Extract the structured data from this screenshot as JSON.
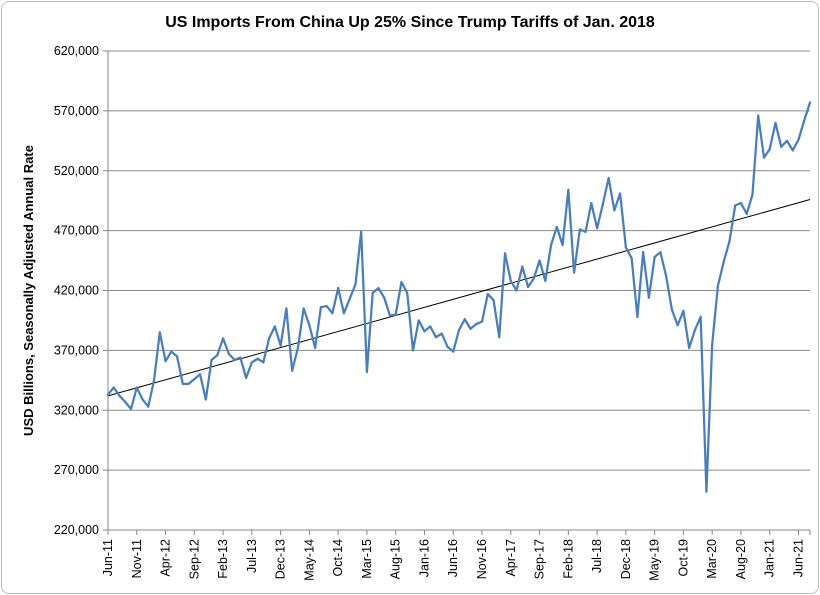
{
  "chart_data": {
    "type": "line",
    "title": "US Imports From China Up 25% Since Trump Tariffs of Jan. 2018",
    "xlabel": "",
    "ylabel": "USD Billions, Seasonally Adjusted Annual Rate",
    "ylim": [
      220000,
      620000
    ],
    "yticks": [
      220000,
      270000,
      320000,
      370000,
      420000,
      470000,
      520000,
      570000,
      620000
    ],
    "ytick_labels": [
      "220,000",
      "270,000",
      "320,000",
      "370,000",
      "420,000",
      "470,000",
      "520,000",
      "570,000",
      "620,000"
    ],
    "grid": true,
    "legend": "none",
    "x_tick_labels": [
      "Jun-11",
      "Nov-11",
      "Apr-12",
      "Sep-12",
      "Feb-13",
      "Jul-13",
      "Dec-13",
      "May-14",
      "Oct-14",
      "Mar-15",
      "Aug-15",
      "Jan-16",
      "Jun-16",
      "Nov-16",
      "Apr-17",
      "Sep-17",
      "Feb-18",
      "Jul-18",
      "Dec-18",
      "May-19",
      "Oct-19",
      "Mar-20",
      "Aug-20",
      "Jan-21",
      "Jun-21"
    ],
    "series": [
      {
        "color": "#4a7ebb",
        "start": "2011-06",
        "values": [
          333000,
          339000,
          332000,
          327000,
          321000,
          339000,
          329000,
          323000,
          345000,
          385000,
          361000,
          369000,
          365000,
          342000,
          342000,
          346000,
          350000,
          329000,
          362000,
          366000,
          380000,
          367000,
          362000,
          364000,
          347000,
          360000,
          363000,
          360000,
          380000,
          390000,
          374000,
          405000,
          353000,
          372000,
          405000,
          391000,
          372000,
          406000,
          407000,
          401000,
          422000,
          401000,
          413000,
          425000,
          469000,
          352000,
          418000,
          422000,
          414000,
          399000,
          400000,
          427000,
          418000,
          370000,
          395000,
          386000,
          390000,
          381000,
          384000,
          373000,
          369000,
          387000,
          396000,
          388000,
          392000,
          394000,
          417000,
          412000,
          381000,
          451000,
          428000,
          420000,
          440000,
          423000,
          430000,
          445000,
          428000,
          458000,
          473000,
          458000,
          504000,
          435000,
          471000,
          469000,
          493000,
          472000,
          492000,
          514000,
          487000,
          501000,
          456000,
          447000,
          398000,
          452000,
          414000,
          448000,
          452000,
          432000,
          404000,
          391000,
          403000,
          372000,
          387000,
          398000,
          252000,
          375000,
          424000,
          444000,
          461000,
          491000,
          493000,
          484000,
          500000,
          566000,
          531000,
          538000,
          560000,
          540000,
          545000,
          537000,
          546000,
          562000,
          577000
        ]
      },
      {
        "type": "trendline",
        "color": "#000000",
        "x": [
          "2011-06",
          "2021-08"
        ],
        "y": [
          332000,
          496000
        ]
      }
    ]
  }
}
